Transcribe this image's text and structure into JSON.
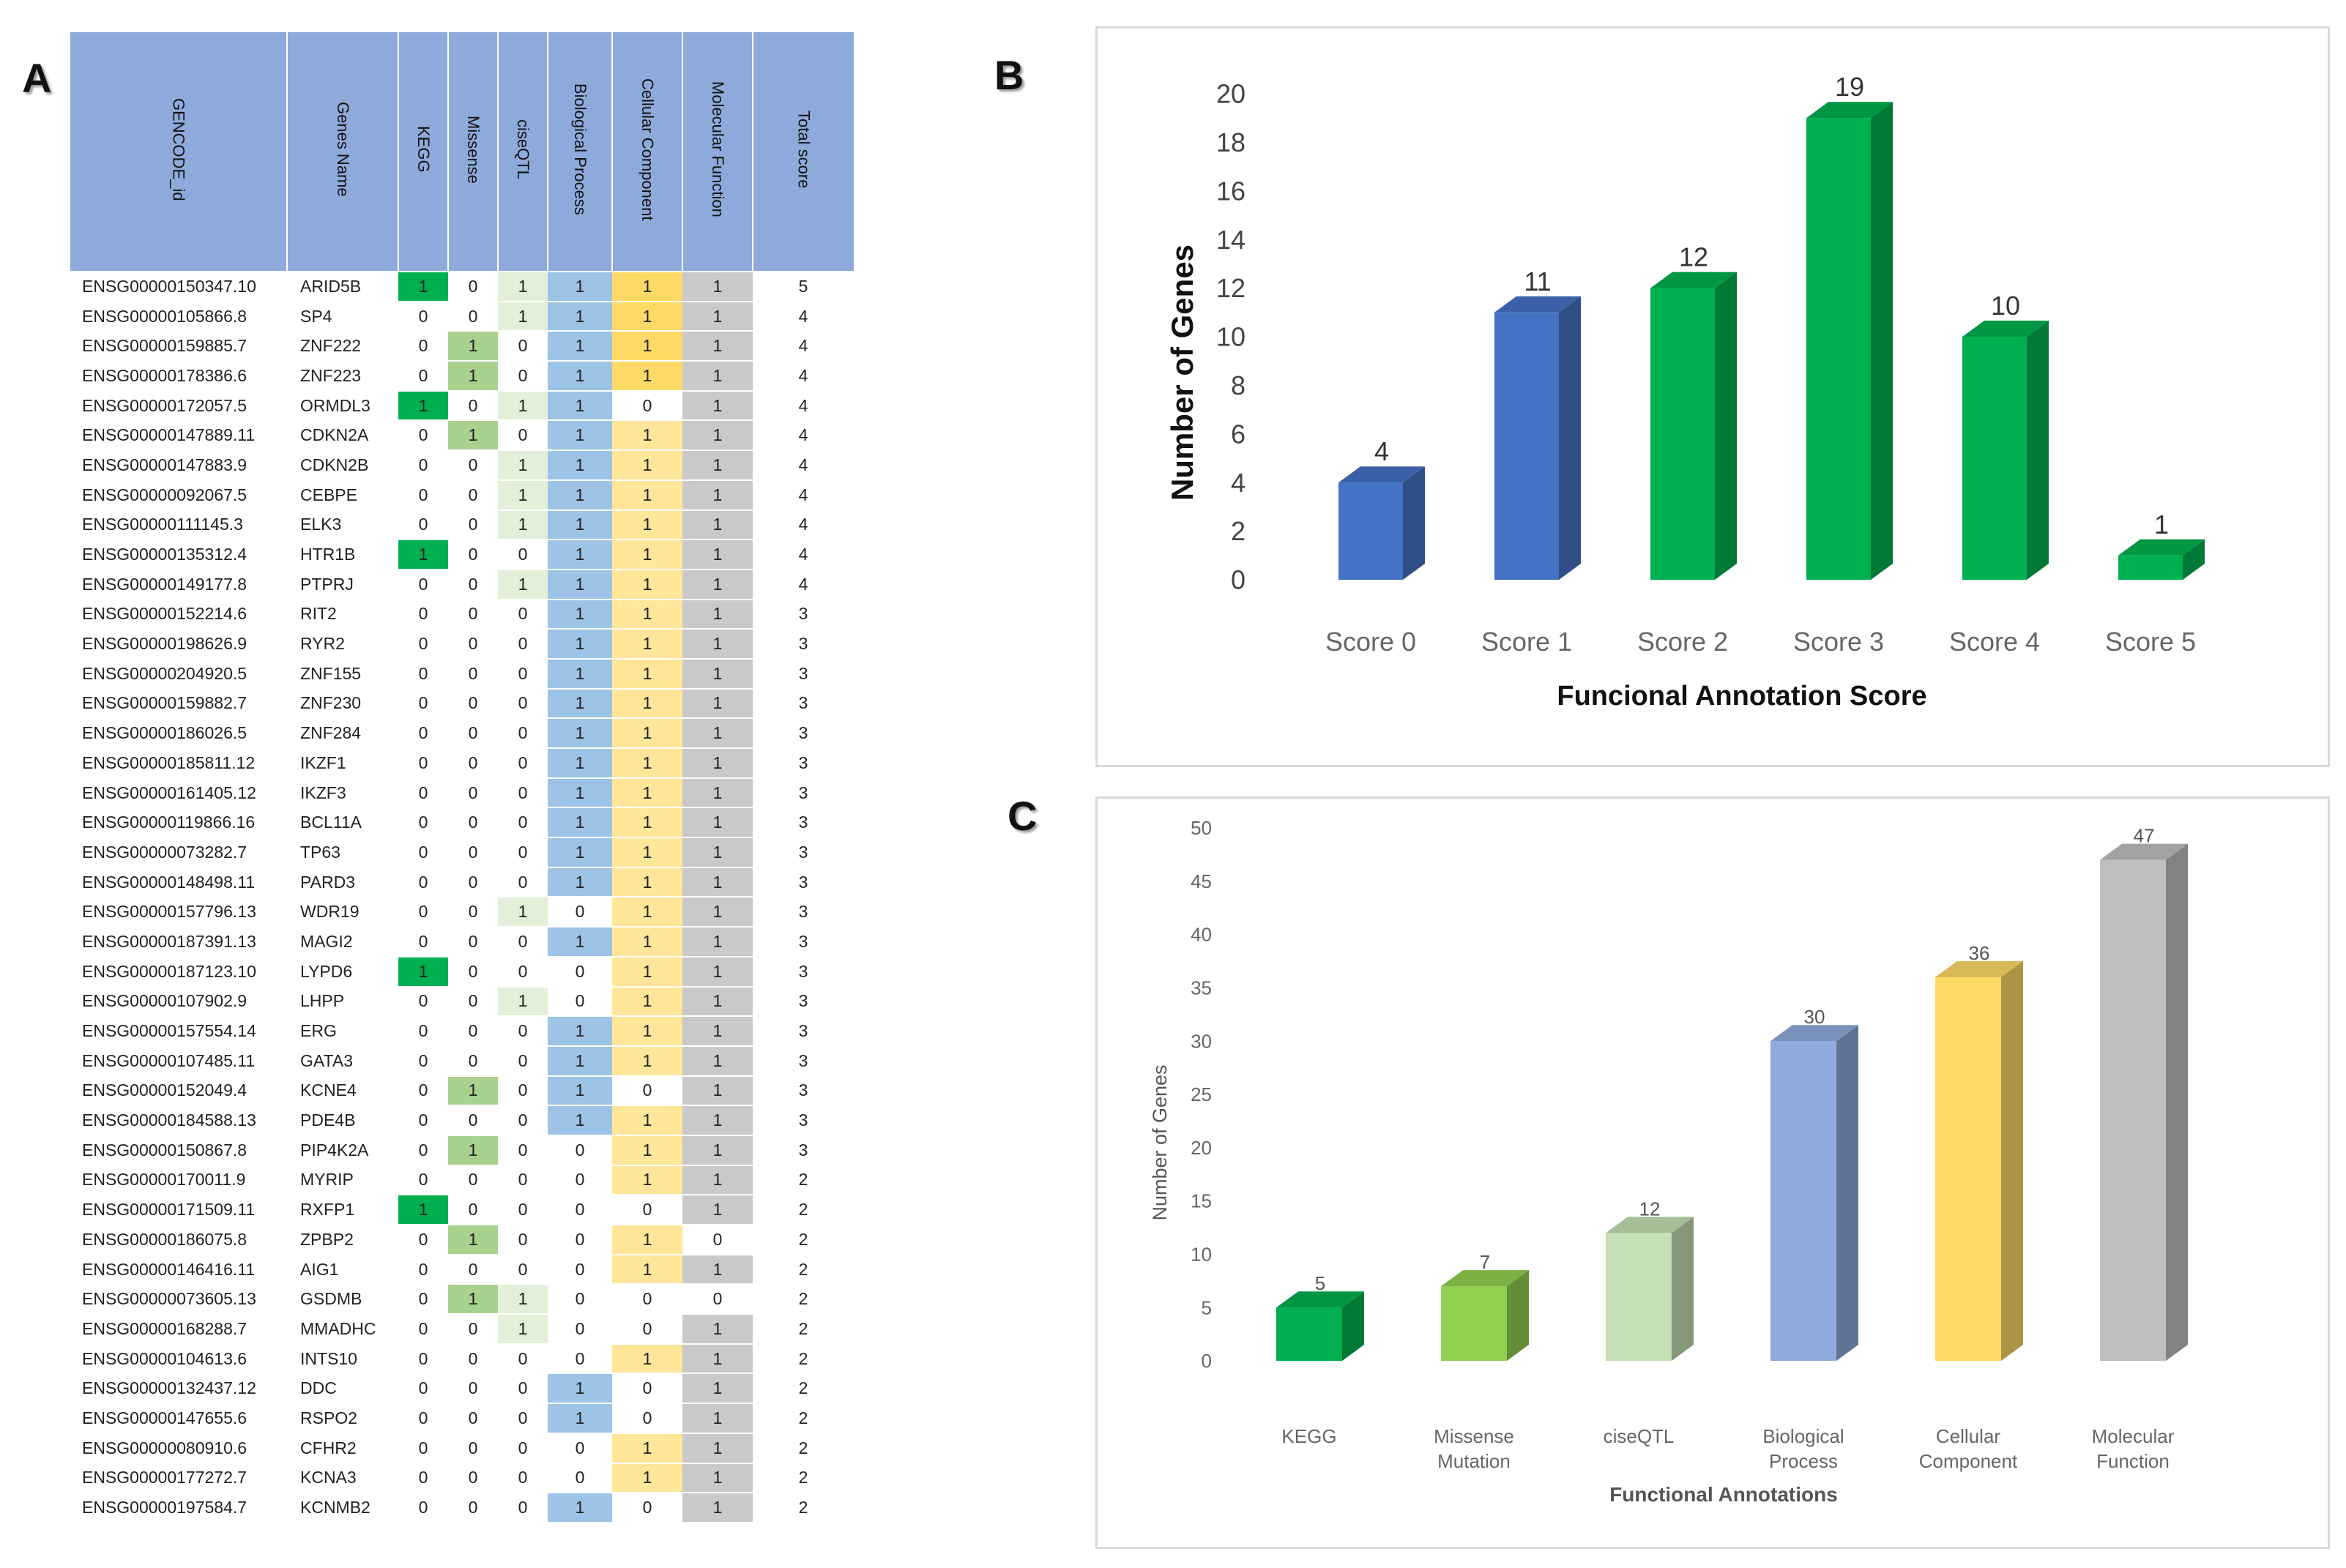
{
  "panel_labels": {
    "a": "A",
    "b": "B",
    "c": "C"
  },
  "table": {
    "headers": [
      "GENCODE_id",
      "Genes Name",
      "KEGG",
      "Missense",
      "ciseQTL",
      "Biological Process",
      "Cellular Component",
      "Molecular Function",
      "Total score"
    ],
    "rows": [
      [
        "ENSG00000150347.10",
        "ARID5B",
        "1",
        "0",
        "1",
        "1",
        "1",
        "1",
        "5"
      ],
      [
        "ENSG00000105866.8",
        "SP4",
        "0",
        "0",
        "1",
        "1",
        "1",
        "1",
        "4"
      ],
      [
        "ENSG00000159885.7",
        "ZNF222",
        "0",
        "1",
        "0",
        "1",
        "1",
        "1",
        "4"
      ],
      [
        "ENSG00000178386.6",
        "ZNF223",
        "0",
        "1",
        "0",
        "1",
        "1",
        "1",
        "4"
      ],
      [
        "ENSG00000172057.5",
        "ORMDL3",
        "1",
        "0",
        "1",
        "1",
        "0",
        "1",
        "4"
      ],
      [
        "ENSG00000147889.11",
        "CDKN2A",
        "0",
        "1",
        "0",
        "1",
        "1",
        "1",
        "4"
      ],
      [
        "ENSG00000147883.9",
        "CDKN2B",
        "0",
        "0",
        "1",
        "1",
        "1",
        "1",
        "4"
      ],
      [
        "ENSG00000092067.5",
        "CEBPE",
        "0",
        "0",
        "1",
        "1",
        "1",
        "1",
        "4"
      ],
      [
        "ENSG00000111145.3",
        "ELK3",
        "0",
        "0",
        "1",
        "1",
        "1",
        "1",
        "4"
      ],
      [
        "ENSG00000135312.4",
        "HTR1B",
        "1",
        "0",
        "0",
        "1",
        "1",
        "1",
        "4"
      ],
      [
        "ENSG00000149177.8",
        "PTPRJ",
        "0",
        "0",
        "1",
        "1",
        "1",
        "1",
        "4"
      ],
      [
        "ENSG00000152214.6",
        "RIT2",
        "0",
        "0",
        "0",
        "1",
        "1",
        "1",
        "3"
      ],
      [
        "ENSG00000198626.9",
        "RYR2",
        "0",
        "0",
        "0",
        "1",
        "1",
        "1",
        "3"
      ],
      [
        "ENSG00000204920.5",
        "ZNF155",
        "0",
        "0",
        "0",
        "1",
        "1",
        "1",
        "3"
      ],
      [
        "ENSG00000159882.7",
        "ZNF230",
        "0",
        "0",
        "0",
        "1",
        "1",
        "1",
        "3"
      ],
      [
        "ENSG00000186026.5",
        "ZNF284",
        "0",
        "0",
        "0",
        "1",
        "1",
        "1",
        "3"
      ],
      [
        "ENSG00000185811.12",
        "IKZF1",
        "0",
        "0",
        "0",
        "1",
        "1",
        "1",
        "3"
      ],
      [
        "ENSG00000161405.12",
        "IKZF3",
        "0",
        "0",
        "0",
        "1",
        "1",
        "1",
        "3"
      ],
      [
        "ENSG00000119866.16",
        "BCL11A",
        "0",
        "0",
        "0",
        "1",
        "1",
        "1",
        "3"
      ],
      [
        "ENSG00000073282.7",
        "TP63",
        "0",
        "0",
        "0",
        "1",
        "1",
        "1",
        "3"
      ],
      [
        "ENSG00000148498.11",
        "PARD3",
        "0",
        "0",
        "0",
        "1",
        "1",
        "1",
        "3"
      ],
      [
        "ENSG00000157796.13",
        "WDR19",
        "0",
        "0",
        "1",
        "0",
        "1",
        "1",
        "3"
      ],
      [
        "ENSG00000187391.13",
        "MAGI2",
        "0",
        "0",
        "0",
        "1",
        "1",
        "1",
        "3"
      ],
      [
        "ENSG00000187123.10",
        "LYPD6",
        "1",
        "0",
        "0",
        "0",
        "1",
        "1",
        "3"
      ],
      [
        "ENSG00000107902.9",
        "LHPP",
        "0",
        "0",
        "1",
        "0",
        "1",
        "1",
        "3"
      ],
      [
        "ENSG00000157554.14",
        "ERG",
        "0",
        "0",
        "0",
        "1",
        "1",
        "1",
        "3"
      ],
      [
        "ENSG00000107485.11",
        "GATA3",
        "0",
        "0",
        "0",
        "1",
        "1",
        "1",
        "3"
      ],
      [
        "ENSG00000152049.4",
        "KCNE4",
        "0",
        "1",
        "0",
        "1",
        "0",
        "1",
        "3"
      ],
      [
        "ENSG00000184588.13",
        "PDE4B",
        "0",
        "0",
        "0",
        "1",
        "1",
        "1",
        "3"
      ],
      [
        "ENSG00000150867.8",
        "PIP4K2A",
        "0",
        "1",
        "0",
        "0",
        "1",
        "1",
        "3"
      ],
      [
        "ENSG00000170011.9",
        "MYRIP",
        "0",
        "0",
        "0",
        "0",
        "1",
        "1",
        "2"
      ],
      [
        "ENSG00000171509.11",
        "RXFP1",
        "1",
        "0",
        "0",
        "0",
        "0",
        "1",
        "2"
      ],
      [
        "ENSG00000186075.8",
        "ZPBP2",
        "0",
        "1",
        "0",
        "0",
        "1",
        "0",
        "2"
      ],
      [
        "ENSG00000146416.11",
        "AIG1",
        "0",
        "0",
        "0",
        "0",
        "1",
        "1",
        "2"
      ],
      [
        "ENSG00000073605.13",
        "GSDMB",
        "0",
        "1",
        "1",
        "0",
        "0",
        "0",
        "2"
      ],
      [
        "ENSG00000168288.7",
        "MMADHC",
        "0",
        "0",
        "1",
        "0",
        "0",
        "1",
        "2"
      ],
      [
        "ENSG00000104613.6",
        "INTS10",
        "0",
        "0",
        "0",
        "0",
        "1",
        "1",
        "2"
      ],
      [
        "ENSG00000132437.12",
        "DDC",
        "0",
        "0",
        "0",
        "1",
        "0",
        "1",
        "2"
      ],
      [
        "ENSG00000147655.6",
        "RSPO2",
        "0",
        "0",
        "0",
        "1",
        "0",
        "1",
        "2"
      ],
      [
        "ENSG00000080910.6",
        "CFHR2",
        "0",
        "0",
        "0",
        "0",
        "1",
        "1",
        "2"
      ],
      [
        "ENSG00000177272.7",
        "KCNA3",
        "0",
        "0",
        "0",
        "0",
        "1",
        "1",
        "2"
      ],
      [
        "ENSG00000197584.7",
        "KCNMB2",
        "0",
        "0",
        "0",
        "1",
        "0",
        "1",
        "2"
      ]
    ]
  },
  "chart_data": [
    {
      "type": "bar",
      "title": "",
      "xlabel": "Funcional Annotation Score",
      "ylabel": "Number of Genes",
      "categories": [
        "Score 0",
        "Score 1",
        "Score 2",
        "Score 3",
        "Score 4",
        "Score 5"
      ],
      "values": [
        4,
        11,
        12,
        19,
        10,
        1
      ],
      "value_labels": [
        "4",
        "11",
        "12",
        "19",
        "10",
        "1"
      ],
      "colors": [
        "#4472c4",
        "#4472c4",
        "#00b050",
        "#00b050",
        "#00b050",
        "#00b050"
      ],
      "ylim": [
        0,
        20
      ],
      "yticks": [
        0,
        2,
        4,
        6,
        8,
        10,
        12,
        14,
        16,
        18,
        20
      ],
      "grid": false
    },
    {
      "type": "bar",
      "title": "",
      "xlabel": "Functional Annotations",
      "ylabel": "Number of Genes",
      "categories": [
        "KEGG",
        "Missense Mutation",
        "ciseQTL",
        "Biological Process",
        "Cellular Component",
        "Molecular Function"
      ],
      "values": [
        5,
        7,
        12,
        30,
        36,
        47
      ],
      "value_labels": [
        "5",
        "7",
        "12",
        "30",
        "36",
        "47"
      ],
      "colors": [
        "#00b050",
        "#92d050",
        "#c5e0b4",
        "#8faadc",
        "#ffd966",
        "#bfbfbf"
      ],
      "ylim": [
        0,
        50
      ],
      "yticks": [
        0,
        5,
        10,
        15,
        20,
        25,
        30,
        35,
        40,
        45,
        50
      ],
      "grid": false
    }
  ]
}
